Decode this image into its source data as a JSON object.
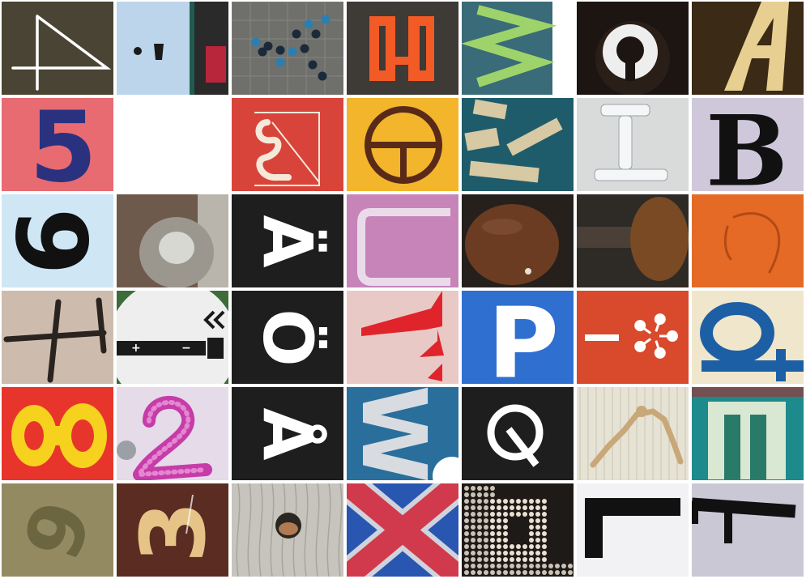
{
  "tiles": [
    {
      "id": "r1c1",
      "bg": "#4a4434",
      "glyph": "4",
      "fg": "#ffffff",
      "desc": "line-drawn 4 on dark olive panel"
    },
    {
      "id": "r1c2",
      "bg": "#bcd5ea",
      "glyph": "¡",
      "fg": "#1a1a1a",
      "desc": "inverted exclamation on pale blue panel"
    },
    {
      "id": "r1c3",
      "bg": "#6f6f6b",
      "glyph": "K",
      "fg": "#1b2a3a",
      "desc": "K formed by bottles on tiled floor"
    },
    {
      "id": "r1c4",
      "bg": "#3e3a36",
      "glyph": "S",
      "fg": "#f25a26",
      "desc": "orange rotated S on dark ground"
    },
    {
      "id": "r1c5",
      "bg": "#3a6b78",
      "glyph": "W",
      "fg": "#9ed36b",
      "desc": "green W on teal"
    },
    {
      "id": "r1c6",
      "bg": "#1c1512",
      "glyph": "G",
      "fg": "#eeeeee",
      "desc": "white G on dark ground"
    },
    {
      "id": "r1c7",
      "bg": "#3a2a16",
      "glyph": "A",
      "fg": "#e6cf90",
      "desc": "cream A on brown"
    },
    {
      "id": "r2c1",
      "bg": "#e86b72",
      "glyph": "5",
      "fg": "#2a3280",
      "desc": "blue 5 on pink"
    },
    {
      "id": "r2c2",
      "bg": "#ffffff",
      "glyph": "",
      "fg": "#ffffff",
      "desc": "blank tile"
    },
    {
      "id": "r2c3",
      "bg": "#d9443a",
      "glyph": "Z",
      "fg": "#f6e9d9",
      "desc": "ornate Z on red"
    },
    {
      "id": "r2c4",
      "bg": "#f2b52b",
      "glyph": "Θ",
      "fg": "#5a2a18",
      "desc": "theta in circle on yellow"
    },
    {
      "id": "r2c5",
      "bg": "#1f5c6b",
      "glyph": "N",
      "fg": "#d6c9a3",
      "desc": "N made of wooden sticks on teal"
    },
    {
      "id": "r2c6",
      "bg": "#d8dbd9",
      "glyph": "I",
      "fg": "#9aa3aa",
      "desc": "I made of wrapped rolls"
    },
    {
      "id": "r2c7",
      "bg": "#cfc8da",
      "glyph": "B",
      "fg": "#111111",
      "desc": "black B on lilac"
    },
    {
      "id": "r3c1",
      "bg": "#cfe6f5",
      "glyph": "6",
      "fg": "#111111",
      "desc": "rotated 6 on light blue"
    },
    {
      "id": "r3c2",
      "bg": "#7c7268",
      "glyph": "O",
      "fg": "#9b978f",
      "desc": "stone ring O"
    },
    {
      "id": "r3c3",
      "bg": "#1e1e1e",
      "glyph": "Ä",
      "fg": "#ffffff",
      "desc": "rotated A with umlaut on black"
    },
    {
      "id": "r3c4",
      "bg": "#c983b8",
      "glyph": "U",
      "fg": "#e9d8ea",
      "desc": "rotated U on pink pixel screen"
    },
    {
      "id": "r3c5",
      "bg": "#26201c",
      "glyph": "O",
      "fg": "#6b3c22",
      "desc": "mushroom cap O"
    },
    {
      "id": "r3c6",
      "bg": "#2e2a26",
      "glyph": "T",
      "fg": "#7a4a24",
      "desc": "mushroom T rotated"
    },
    {
      "id": "r3c7",
      "bg": "#e56a26",
      "glyph": "C",
      "fg": "#b34a16",
      "desc": "faint C drawn on orange"
    },
    {
      "id": "r4c1",
      "bg": "#cdbcae",
      "glyph": "4",
      "fg": "#2a2420",
      "desc": "spray-painted rotated 4"
    },
    {
      "id": "r4c2",
      "bg": "#eeeeee",
      "glyph": "battery",
      "fg": "#1a1a1a",
      "desc": "battery sign on green rim"
    },
    {
      "id": "r4c3",
      "bg": "#1e1e1e",
      "glyph": "Ö",
      "fg": "#ffffff",
      "desc": "rotated O with umlaut on black"
    },
    {
      "id": "r4c4",
      "bg": "#e9c9c6",
      "glyph": "Y",
      "fg": "#e0242c",
      "desc": "red rotated Y on pale pink"
    },
    {
      "id": "r4c5",
      "bg": "#2f6fd0",
      "glyph": "P",
      "fg": "#ffffff",
      "desc": "white P on blue sign"
    },
    {
      "id": "r4c6",
      "bg": "#d9492c",
      "glyph": "*",
      "fg": "#ffffff",
      "desc": "dash and asterisk flower on red"
    },
    {
      "id": "r4c7",
      "bg": "#efe6cc",
      "glyph": "d",
      "fg": "#1d5fa4",
      "desc": "blue embroidered rotated d"
    },
    {
      "id": "r5c1",
      "bg": "#e8352b",
      "glyph": "8",
      "fg": "#f6d21e",
      "desc": "yellow rotated 8 on red"
    },
    {
      "id": "r5c2",
      "bg": "#e6dbe8",
      "glyph": "2",
      "fg": "#c63ca8",
      "desc": "magenta 2 on pale lilac"
    },
    {
      "id": "r5c3",
      "bg": "#1e1e1e",
      "glyph": "Å",
      "fg": "#ffffff",
      "desc": "rotated A with ring on black"
    },
    {
      "id": "r5c4",
      "bg": "#2a6e9c",
      "glyph": "W",
      "fg": "#d8dce0",
      "desc": "rotated W on blue"
    },
    {
      "id": "r5c5",
      "bg": "#1e1e1e",
      "glyph": "Q",
      "fg": "#ffffff",
      "desc": "white Q on black"
    },
    {
      "id": "r5c6",
      "bg": "#e6e2d4",
      "glyph": "H",
      "fg": "#c8a878",
      "desc": "wooden mannequin H"
    },
    {
      "id": "r5c7",
      "bg": "#1d8a8c",
      "glyph": "E",
      "fg": "#d9e8d2",
      "desc": "rotated E on teal"
    },
    {
      "id": "r6c1",
      "bg": "#948a62",
      "glyph": "9",
      "fg": "#6b6540",
      "desc": "rotated 9 on olive"
    },
    {
      "id": "r6c2",
      "bg": "#5a2c22",
      "glyph": "3",
      "fg": "#e6c488",
      "desc": "rotated 3 on brown"
    },
    {
      "id": "r6c3",
      "bg": "#c6c4bd",
      "glyph": "O",
      "fg": "#2a2620",
      "desc": "wood knot hole O"
    },
    {
      "id": "r6c4",
      "bg": "#2856b0",
      "glyph": "X",
      "fg": "#d13a4c",
      "desc": "red X on blue"
    },
    {
      "id": "r6c5",
      "bg": "#1e1a17",
      "glyph": "R",
      "fg": "#e9e0d2",
      "desc": "dotted rotated R"
    },
    {
      "id": "r6c6",
      "bg": "#e9e9ee",
      "glyph": "L",
      "fg": "#111111",
      "desc": "black L on white"
    },
    {
      "id": "r6c7",
      "bg": "#cbc8d6",
      "glyph": "F",
      "fg": "#111111",
      "desc": "black rotated F on lilac"
    }
  ]
}
